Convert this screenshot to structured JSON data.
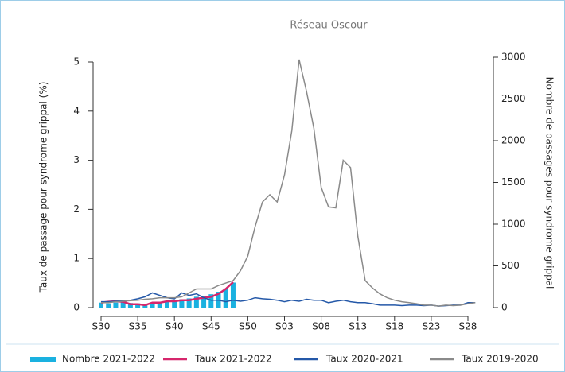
{
  "chart_data": {
    "type": "line",
    "title": "Réseau Oscour",
    "ylabel": "Taux de passage pour syndrome grippal (%)",
    "y2label": "Nombre de passages pour syndrome grippal",
    "categories": [
      "S30",
      null,
      null,
      null,
      null,
      "S35",
      null,
      null,
      null,
      null,
      "S40",
      null,
      null,
      null,
      null,
      "S45",
      null,
      null,
      null,
      null,
      "S50",
      null,
      null,
      null,
      null,
      "S03",
      null,
      null,
      null,
      null,
      "S08",
      null,
      null,
      null,
      null,
      "S13",
      null,
      null,
      null,
      null,
      "S18",
      null,
      null,
      null,
      null,
      "S23",
      null,
      null,
      null,
      null,
      "S28",
      null
    ],
    "ylim": [
      0,
      5
    ],
    "yticks": [
      0,
      1,
      2,
      3,
      4,
      5
    ],
    "y2lim": [
      0,
      3000
    ],
    "y2ticks": [
      0,
      500,
      1000,
      1500,
      2000,
      2500,
      3000
    ],
    "series": [
      {
        "name": "Nombre 2021-2022",
        "type": "bar",
        "axis": "y2",
        "color": "#1ab1e0",
        "values": [
          60,
          50,
          60,
          70,
          55,
          50,
          45,
          60,
          70,
          80,
          90,
          100,
          110,
          130,
          140,
          160,
          190,
          230,
          300,
          null,
          null,
          null,
          null,
          null,
          null,
          null,
          null,
          null,
          null,
          null,
          null,
          null,
          null,
          null,
          null,
          null,
          null,
          null,
          null,
          null,
          null,
          null,
          null,
          null,
          null,
          null,
          null,
          null,
          null,
          null,
          null,
          null
        ]
      },
      {
        "name": "Taux 2021-2022",
        "type": "line",
        "color": "#d6266c",
        "values": [
          0.1,
          0.12,
          0.13,
          0.12,
          0.07,
          0.07,
          0.05,
          0.1,
          0.1,
          0.13,
          0.13,
          0.15,
          0.15,
          0.18,
          0.2,
          0.22,
          0.28,
          0.38,
          0.52,
          null,
          null,
          null,
          null,
          null,
          null,
          null,
          null,
          null,
          null,
          null,
          null,
          null,
          null,
          null,
          null,
          null,
          null,
          null,
          null,
          null,
          null,
          null,
          null,
          null,
          null,
          null,
          null,
          null,
          null,
          null,
          null,
          null
        ]
      },
      {
        "name": "Taux 2020-2021",
        "type": "line",
        "color": "#2458a8",
        "values": [
          0.12,
          0.12,
          0.13,
          0.14,
          0.15,
          0.18,
          0.22,
          0.3,
          0.25,
          0.2,
          0.18,
          0.3,
          0.25,
          0.28,
          0.2,
          0.15,
          0.15,
          0.12,
          0.15,
          0.13,
          0.15,
          0.2,
          0.18,
          0.17,
          0.15,
          0.12,
          0.15,
          0.13,
          0.17,
          0.15,
          0.15,
          0.1,
          0.13,
          0.15,
          0.12,
          0.1,
          0.1,
          0.08,
          0.05,
          0.05,
          0.05,
          0.04,
          0.05,
          0.05,
          0.04,
          0.05,
          0.03,
          0.04,
          0.05,
          0.05,
          0.1,
          0.1
        ]
      },
      {
        "name": "Taux 2019-2020",
        "type": "line",
        "color": "#8a8a8a",
        "values": [
          0.1,
          0.1,
          0.12,
          0.13,
          0.14,
          0.15,
          0.17,
          0.18,
          0.2,
          0.2,
          0.2,
          0.22,
          0.3,
          0.38,
          0.38,
          0.38,
          0.45,
          0.5,
          0.55,
          0.75,
          1.05,
          1.65,
          2.15,
          2.3,
          2.15,
          2.7,
          3.6,
          5.05,
          4.4,
          3.65,
          2.45,
          2.05,
          2.03,
          3.0,
          2.85,
          1.45,
          0.55,
          0.4,
          0.28,
          0.2,
          0.15,
          0.12,
          0.1,
          0.08,
          0.05,
          0.05,
          0.03,
          0.05,
          0.04,
          0.05,
          0.08,
          0.1
        ]
      }
    ]
  }
}
